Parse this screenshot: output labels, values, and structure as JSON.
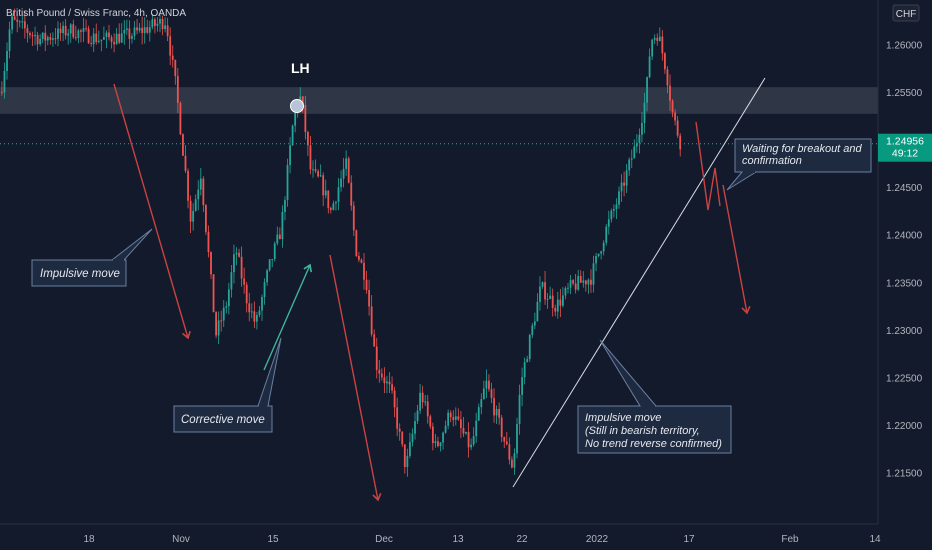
{
  "header": {
    "symbol_line": "British Pound / Swiss Franc, 4h, OANDA",
    "currency_badge": "CHF"
  },
  "price_axis": {
    "ticks": [
      "1.26000",
      "1.25500",
      "1.25000",
      "1.24500",
      "1.24000",
      "1.23500",
      "1.23000",
      "1.22500",
      "1.22000",
      "1.21500"
    ],
    "current_price": "1.24956",
    "countdown": "49:12"
  },
  "time_axis": {
    "ticks": [
      "18",
      "Nov",
      "15",
      "Dec",
      "13",
      "22",
      "2022",
      "17",
      "Feb",
      "14"
    ]
  },
  "annotations": {
    "lh_label": "LH",
    "impulsive_move_1": "Impulsive move",
    "corrective_move": "Corrective move",
    "impulsive_move_2": [
      "Impulsive move",
      "(Still in bearish territory,",
      "No trend reverse confirmed)"
    ],
    "waiting": [
      "Waiting for breakout and",
      "confirmation"
    ]
  },
  "colors": {
    "background": "#131a2b",
    "bull_candle": "#26a69a",
    "bear_candle": "#ef5350",
    "arrow_red": "#c94343",
    "arrow_teal": "#3fb59a",
    "price_badge": "#089981",
    "zone": "#3a4150",
    "callout_bg": "#1e2a40",
    "callout_border": "#6a7fa2"
  },
  "chart_data": {
    "type": "candlestick",
    "instrument": "British Pound / Swiss Franc",
    "timeframe": "4h",
    "source": "OANDA",
    "y_range": [
      1.2115,
      1.2635
    ],
    "resistance_zone": [
      1.2527,
      1.2555
    ],
    "current_price": 1.24956,
    "path": [
      [
        0,
        1.255
      ],
      [
        10,
        1.2625
      ],
      [
        40,
        1.2605
      ],
      [
        70,
        1.2615
      ],
      [
        100,
        1.2605
      ],
      [
        130,
        1.261
      ],
      [
        165,
        1.2625
      ],
      [
        175,
        1.2555
      ],
      [
        190,
        1.2415
      ],
      [
        200,
        1.2465
      ],
      [
        215,
        1.2295
      ],
      [
        225,
        1.2325
      ],
      [
        235,
        1.2385
      ],
      [
        245,
        1.2335
      ],
      [
        255,
        1.2305
      ],
      [
        268,
        1.2365
      ],
      [
        280,
        1.2405
      ],
      [
        293,
        1.2525
      ],
      [
        300,
        1.2545
      ],
      [
        310,
        1.2465
      ],
      [
        320,
        1.2455
      ],
      [
        330,
        1.2425
      ],
      [
        345,
        1.2475
      ],
      [
        355,
        1.2385
      ],
      [
        365,
        1.2355
      ],
      [
        375,
        1.2265
      ],
      [
        390,
        1.2235
      ],
      [
        405,
        1.2155
      ],
      [
        420,
        1.2235
      ],
      [
        435,
        1.2175
      ],
      [
        450,
        1.2215
      ],
      [
        470,
        1.2175
      ],
      [
        485,
        1.2245
      ],
      [
        500,
        1.2195
      ],
      [
        512,
        1.2155
      ],
      [
        520,
        1.2245
      ],
      [
        530,
        1.2295
      ],
      [
        540,
        1.2345
      ],
      [
        555,
        1.2325
      ],
      [
        570,
        1.2345
      ],
      [
        590,
        1.2355
      ],
      [
        605,
        1.2405
      ],
      [
        620,
        1.2445
      ],
      [
        635,
        1.2495
      ],
      [
        645,
        1.2545
      ],
      [
        650,
        1.2605
      ],
      [
        657,
        1.2612
      ],
      [
        665,
        1.2575
      ],
      [
        672,
        1.2525
      ],
      [
        680,
        1.2495
      ]
    ],
    "projection": [
      [
        680,
        1.2495
      ],
      [
        690,
        1.2515
      ],
      [
        705,
        1.2455
      ],
      [
        713,
        1.2495
      ],
      [
        720,
        1.2455
      ]
    ]
  }
}
